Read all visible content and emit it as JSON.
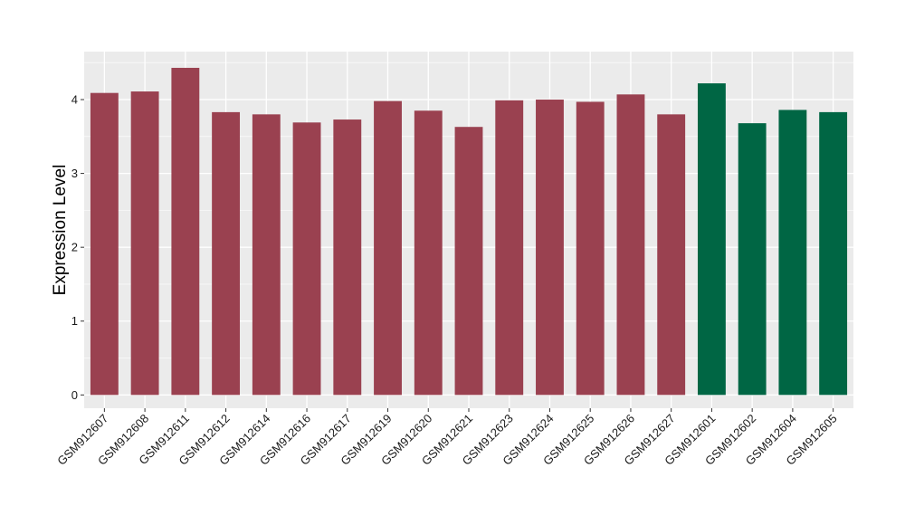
{
  "chart_data": {
    "type": "bar",
    "title": "",
    "xlabel": "",
    "ylabel": "Expression Level",
    "ylim": [
      -0.18,
      4.65
    ],
    "yticks": [
      0,
      1,
      2,
      3,
      4
    ],
    "grid": true,
    "legend": "none",
    "colors": {
      "group1": "#9a4150",
      "group2": "#006644",
      "panel": "#ebebeb",
      "grid": "#ffffff"
    },
    "categories": [
      "GSM912607",
      "GSM912608",
      "GSM912611",
      "GSM912612",
      "GSM912614",
      "GSM912616",
      "GSM912617",
      "GSM912619",
      "GSM912620",
      "GSM912621",
      "GSM912623",
      "GSM912624",
      "GSM912625",
      "GSM912626",
      "GSM912627",
      "GSM912601",
      "GSM912602",
      "GSM912604",
      "GSM912605"
    ],
    "values": [
      4.09,
      4.11,
      4.43,
      3.83,
      3.8,
      3.69,
      3.73,
      3.98,
      3.85,
      3.63,
      3.99,
      4.0,
      3.97,
      4.07,
      3.8,
      4.22,
      3.68,
      3.86,
      3.83
    ],
    "groups": [
      1,
      1,
      1,
      1,
      1,
      1,
      1,
      1,
      1,
      1,
      1,
      1,
      1,
      1,
      1,
      2,
      2,
      2,
      2
    ]
  }
}
